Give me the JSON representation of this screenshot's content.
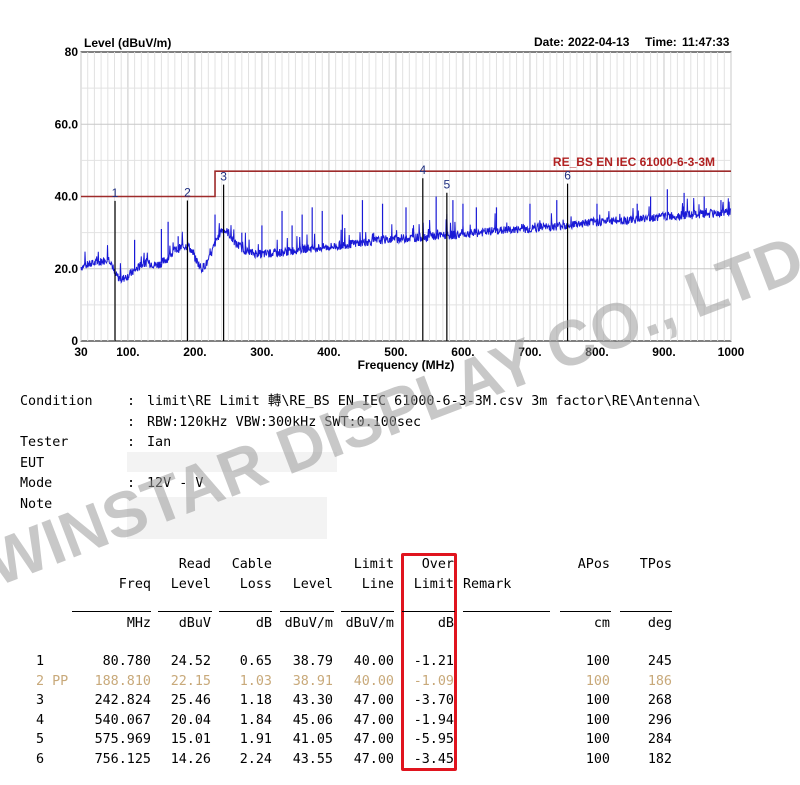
{
  "chart_data": {
    "type": "line",
    "ylabel": "Level (dBuV/m)",
    "xlabel": "Frequency (MHz)",
    "date_label": "Date:",
    "date": "2022-04-13",
    "time_label": "Time:",
    "time": "11:47:33",
    "xlim": [
      30,
      1000
    ],
    "ylim": [
      0,
      80
    ],
    "x_ticks": [
      30,
      100,
      200,
      300,
      400,
      500,
      600,
      700,
      800,
      900,
      1000
    ],
    "x_tick_labels": [
      "30",
      "100.",
      "200.",
      "300.",
      "400.",
      "500.",
      "600.",
      "700.",
      "800.",
      "900.",
      "1000"
    ],
    "y_ticks": [
      0,
      20,
      40,
      60,
      80
    ],
    "y_tick_labels": [
      "0",
      "20.0",
      "40.0",
      "60.0",
      "80"
    ],
    "grid": true,
    "limit_name": "RE_BS EN IEC 61000-6-3-3M",
    "limit_line": [
      {
        "x": 30,
        "y": 40
      },
      {
        "x": 230,
        "y": 40
      },
      {
        "x": 230,
        "y": 47
      },
      {
        "x": 1000,
        "y": 47
      }
    ],
    "trace": [
      {
        "x": 30,
        "y": 20.5
      },
      {
        "x": 40,
        "y": 21
      },
      {
        "x": 50,
        "y": 21.5
      },
      {
        "x": 60,
        "y": 22
      },
      {
        "x": 70,
        "y": 23
      },
      {
        "x": 75,
        "y": 22
      },
      {
        "x": 80,
        "y": 18.5
      },
      {
        "x": 90,
        "y": 17
      },
      {
        "x": 100,
        "y": 18
      },
      {
        "x": 110,
        "y": 19.5
      },
      {
        "x": 120,
        "y": 21
      },
      {
        "x": 130,
        "y": 22
      },
      {
        "x": 140,
        "y": 21
      },
      {
        "x": 150,
        "y": 21.5
      },
      {
        "x": 160,
        "y": 23
      },
      {
        "x": 170,
        "y": 25
      },
      {
        "x": 180,
        "y": 26
      },
      {
        "x": 190,
        "y": 26.5
      },
      {
        "x": 200,
        "y": 23
      },
      {
        "x": 210,
        "y": 20
      },
      {
        "x": 220,
        "y": 22
      },
      {
        "x": 230,
        "y": 27
      },
      {
        "x": 240,
        "y": 31
      },
      {
        "x": 250,
        "y": 30
      },
      {
        "x": 260,
        "y": 27
      },
      {
        "x": 280,
        "y": 24.5
      },
      {
        "x": 300,
        "y": 24
      },
      {
        "x": 330,
        "y": 24.5
      },
      {
        "x": 360,
        "y": 25.5
      },
      {
        "x": 400,
        "y": 26
      },
      {
        "x": 440,
        "y": 27
      },
      {
        "x": 480,
        "y": 28
      },
      {
        "x": 520,
        "y": 28.5
      },
      {
        "x": 560,
        "y": 29
      },
      {
        "x": 600,
        "y": 29.5
      },
      {
        "x": 650,
        "y": 30.5
      },
      {
        "x": 700,
        "y": 31
      },
      {
        "x": 750,
        "y": 32
      },
      {
        "x": 800,
        "y": 33
      },
      {
        "x": 850,
        "y": 33.5
      },
      {
        "x": 900,
        "y": 34.5
      },
      {
        "x": 950,
        "y": 35
      },
      {
        "x": 1000,
        "y": 35.5
      }
    ],
    "spikes": [
      {
        "x": 110,
        "y": 28
      },
      {
        "x": 150,
        "y": 31
      },
      {
        "x": 160,
        "y": 33
      },
      {
        "x": 175,
        "y": 29
      },
      {
        "x": 230,
        "y": 35
      },
      {
        "x": 270,
        "y": 30
      },
      {
        "x": 300,
        "y": 32
      },
      {
        "x": 330,
        "y": 36
      },
      {
        "x": 345,
        "y": 32
      },
      {
        "x": 360,
        "y": 35
      },
      {
        "x": 375,
        "y": 37
      },
      {
        "x": 390,
        "y": 36
      },
      {
        "x": 420,
        "y": 35
      },
      {
        "x": 450,
        "y": 39
      },
      {
        "x": 480,
        "y": 38
      },
      {
        "x": 515,
        "y": 37
      },
      {
        "x": 560,
        "y": 40
      },
      {
        "x": 585,
        "y": 39
      },
      {
        "x": 600,
        "y": 38
      },
      {
        "x": 620,
        "y": 37
      },
      {
        "x": 650,
        "y": 37
      },
      {
        "x": 700,
        "y": 38
      },
      {
        "x": 740,
        "y": 39
      },
      {
        "x": 800,
        "y": 38
      },
      {
        "x": 860,
        "y": 38
      },
      {
        "x": 880,
        "y": 40
      },
      {
        "x": 905,
        "y": 42
      },
      {
        "x": 930,
        "y": 41
      },
      {
        "x": 960,
        "y": 40
      },
      {
        "x": 985,
        "y": 39
      }
    ],
    "markers": [
      {
        "label": "1",
        "x": 80.78,
        "y": 38.79
      },
      {
        "label": "2",
        "x": 188.81,
        "y": 38.91
      },
      {
        "label": "3",
        "x": 242.824,
        "y": 43.3
      },
      {
        "label": "4",
        "x": 540.067,
        "y": 45.06
      },
      {
        "label": "5",
        "x": 575.969,
        "y": 41.05
      },
      {
        "label": "6",
        "x": 756.125,
        "y": 43.55
      }
    ],
    "colors": {
      "trace": "#1a1ad6",
      "limit": "#9e2b2b",
      "marker": "#000000",
      "grid": "#c8c8c8",
      "limit_label": "#b02020"
    }
  },
  "condition": {
    "rows": [
      {
        "label": "Condition",
        "value": "limit\\RE Limit 轉\\RE_BS EN IEC 61000-6-3-3M.csv 3m factor\\RE\\Antenna\\"
      },
      {
        "label": "",
        "value": "RBW:120kHz VBW:300kHz SWT:0.100sec"
      },
      {
        "label": "Tester",
        "value": "Ian"
      },
      {
        "label": "EUT",
        "value": ""
      },
      {
        "label": "Mode",
        "value": "12V - V"
      },
      {
        "label": "Note",
        "value": ""
      },
      {
        "label": "",
        "value": ""
      }
    ]
  },
  "table": {
    "headers_top": [
      "",
      "",
      "Read",
      "Cable",
      "",
      "Limit",
      "Over",
      "",
      "APos",
      "TPos"
    ],
    "headers": [
      "",
      "Freq",
      "Level",
      "Loss",
      "Level",
      "Line",
      "Limit",
      "Remark",
      "",
      ""
    ],
    "units": [
      "",
      "MHz",
      "dBuV",
      "dB",
      "dBuV/m",
      "dBuV/m",
      "dB",
      "",
      "cm",
      "deg"
    ],
    "rows": [
      {
        "no": "1",
        "freq": "80.780",
        "read": "24.52",
        "cable": "0.65",
        "level": "38.79",
        "limit": "40.00",
        "over": "-1.21",
        "apos": "100",
        "tpos": "245"
      },
      {
        "no": "2 PP",
        "freq": "188.810",
        "read": "22.15",
        "cable": "1.03",
        "level": "38.91",
        "limit": "40.00",
        "over": "-1.09",
        "apos": "100",
        "tpos": "186"
      },
      {
        "no": "3",
        "freq": "242.824",
        "read": "25.46",
        "cable": "1.18",
        "level": "43.30",
        "limit": "47.00",
        "over": "-3.70",
        "apos": "100",
        "tpos": "268"
      },
      {
        "no": "4",
        "freq": "540.067",
        "read": "20.04",
        "cable": "1.84",
        "level": "45.06",
        "limit": "47.00",
        "over": "-1.94",
        "apos": "100",
        "tpos": "296"
      },
      {
        "no": "5",
        "freq": "575.969",
        "read": "15.01",
        "cable": "1.91",
        "level": "41.05",
        "limit": "47.00",
        "over": "-5.95",
        "apos": "100",
        "tpos": "284"
      },
      {
        "no": "6",
        "freq": "756.125",
        "read": "14.26",
        "cable": "2.24",
        "level": "43.55",
        "limit": "47.00",
        "over": "-3.45",
        "apos": "100",
        "tpos": "182"
      }
    ]
  },
  "watermark": {
    "text": "WINSTAR DISPLAY CO., LTD.",
    "color": "#9a9a9a"
  }
}
